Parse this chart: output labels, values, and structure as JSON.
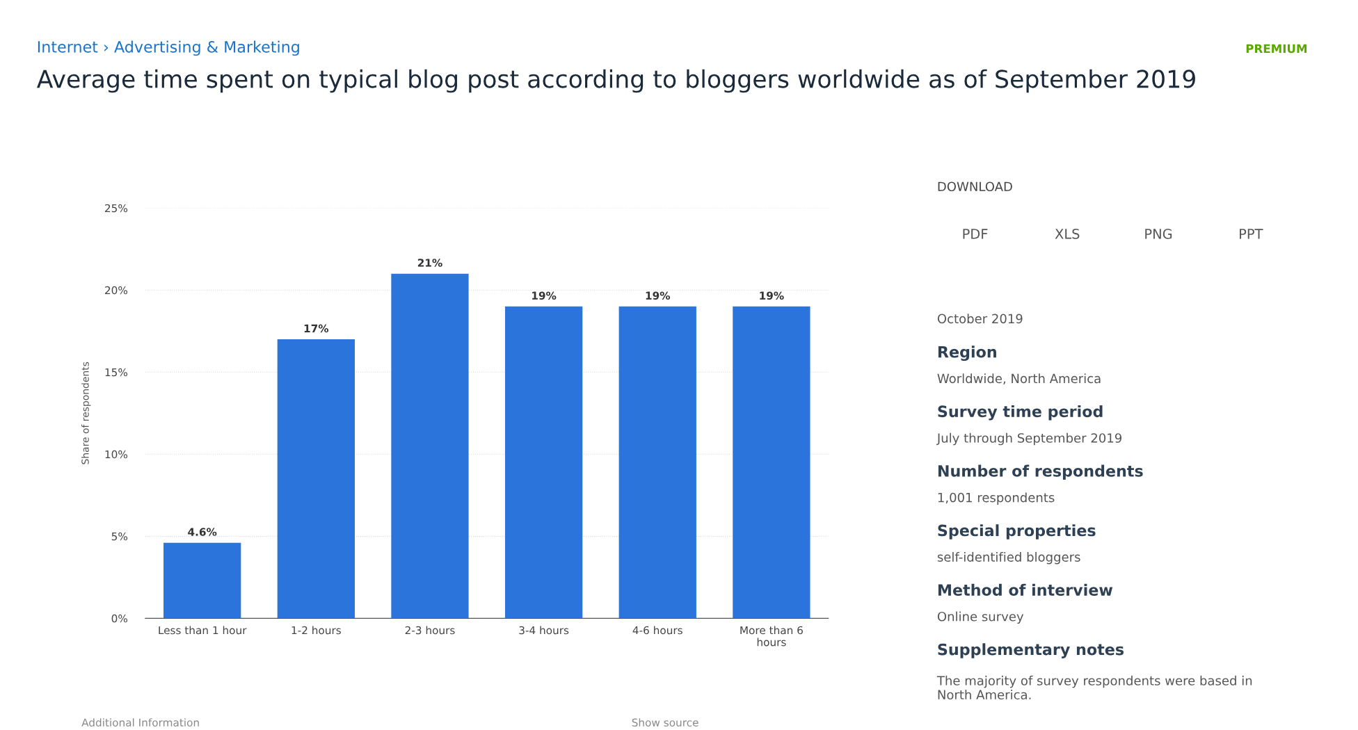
{
  "chart_data": {
    "type": "bar",
    "title": "Average time spent on typical blog post according to bloggers worldwide as of September 2019",
    "ylabel": "Share of respondents",
    "categories": [
      "Less than 1 hour",
      "1-2 hours",
      "2-3 hours",
      "3-4 hours",
      "4-6 hours",
      "More than 6\nhours"
    ],
    "values": [
      4.6,
      17,
      21,
      19,
      19,
      19
    ],
    "color": "#2a74dc",
    "ylim": [
      0,
      25
    ],
    "yticks": [
      {
        "value": 0,
        "label": "0%"
      },
      {
        "value": 5,
        "label": "5%"
      },
      {
        "value": 10,
        "label": "10%"
      },
      {
        "value": 15,
        "label": "15%"
      },
      {
        "value": 20,
        "label": "20%"
      },
      {
        "value": 25,
        "label": "25%"
      }
    ],
    "grid": "y",
    "value_labels": [
      "4.6%",
      "17%",
      "21%",
      "19%",
      "19%",
      "19%"
    ],
    "annotations": [
      "Internet › Advertising & Marketing",
      "PREMIUM",
      "DOWNLOAD",
      "PDF",
      "XLS",
      "PNG",
      "PPT",
      "October 2019",
      "Region",
      "Worldwide, North America",
      "Survey time period",
      "July through September 2019",
      "Number of respondents",
      "1,001 respondents",
      "Special properties",
      "self-identified bloggers",
      "Method of interview",
      "Online survey",
      "Supplementary notes",
      "The majority of survey respondents were based in\nNorth America.",
      "Additional Information",
      "Show source"
    ]
  }
}
